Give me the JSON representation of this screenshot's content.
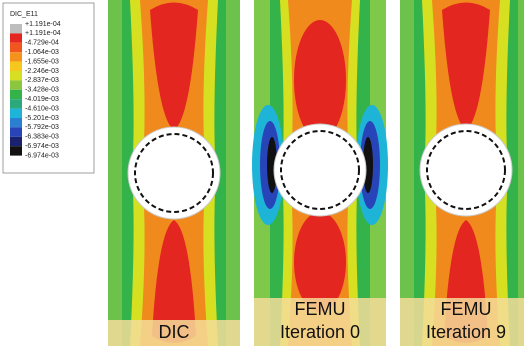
{
  "legend": {
    "title": "DIC_E11",
    "labels": [
      "+1.191e-04",
      "+1.191e-04",
      "-4.729e-04",
      "-1.064e-03",
      "-1.655e-03",
      "-2.246e-03",
      "-2.837e-03",
      "-3.428e-03",
      "-4.019e-03",
      "-4.610e-03",
      "-5.201e-03",
      "-5.792e-03",
      "-6.383e-03",
      "-6.974e-03",
      "-6.974e-03"
    ]
  },
  "panels": [
    {
      "lines": [
        "DIC"
      ]
    },
    {
      "lines": [
        "FEMU",
        "Iteration 0"
      ]
    },
    {
      "lines": [
        "FEMU",
        "Iteration 9"
      ]
    }
  ]
}
